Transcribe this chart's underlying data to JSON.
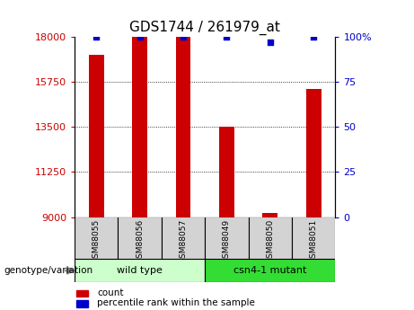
{
  "title": "GDS1744 / 261979_at",
  "samples": [
    "GSM88055",
    "GSM88056",
    "GSM88057",
    "GSM88049",
    "GSM88050",
    "GSM88051"
  ],
  "groups": [
    {
      "name": "wild type",
      "indices": [
        0,
        1,
        2
      ]
    },
    {
      "name": "csn4-1 mutant",
      "indices": [
        3,
        4,
        5
      ]
    }
  ],
  "count_values": [
    17100,
    18000,
    18000,
    13500,
    9200,
    15400
  ],
  "percentile_values": [
    100,
    100,
    100,
    100,
    97,
    100
  ],
  "ylim_left": [
    9000,
    18000
  ],
  "yticks_left": [
    9000,
    11250,
    13500,
    15750,
    18000
  ],
  "ytick_labels_left": [
    "9000",
    "11250",
    "13500",
    "15750",
    "18000"
  ],
  "ylim_right": [
    0,
    100
  ],
  "yticks_right": [
    0,
    25,
    50,
    75,
    100
  ],
  "ytick_labels_right": [
    "0",
    "25",
    "50",
    "75",
    "100%"
  ],
  "bar_color": "#CC0000",
  "dot_color": "#0000CC",
  "legend_count_color": "#CC0000",
  "legend_pct_color": "#0000CC",
  "background_color": "#ffffff",
  "group_box_colors": [
    "#CCFFCC",
    "#33DD33"
  ],
  "sample_box_color": "#D3D3D3"
}
